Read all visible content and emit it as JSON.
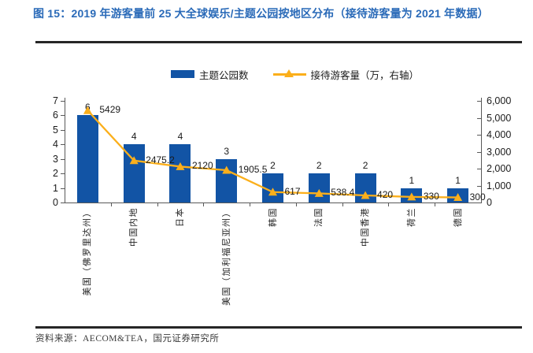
{
  "figure": {
    "title": "图 15：2019 年游客量前 25 大全球娱乐/主题公园按地区分布（接待游客量为 2021 年数据）",
    "source": "资料来源：AECOM&TEA，国元证券研究所"
  },
  "legend": {
    "bar_label": "主题公园数",
    "line_label": "接待游客量（万，右轴）"
  },
  "colors": {
    "bar": "#1254A5",
    "line": "#FBAF1B",
    "title": "#2A6AB8",
    "axis": "#595959",
    "text": "#1A1A1A",
    "rule": "#262626"
  },
  "chart_data": {
    "type": "bar+line combo",
    "title": "图 15：2019 年游客量前 25 大全球娱乐/主题公园按地区分布（接待游客量为 2021 年数据）",
    "categories": [
      "美国（佛罗里达州）",
      "中国内地",
      "日本",
      "美国（加利福尼亚州）",
      "韩国",
      "法国",
      "中国香港",
      "荷兰",
      "德国"
    ],
    "series": [
      {
        "name": "主题公园数",
        "type": "bar",
        "axis": "left",
        "values": [
          6,
          4,
          4,
          3,
          2,
          2,
          2,
          1,
          1
        ]
      },
      {
        "name": "接待游客量（万，右轴）",
        "type": "line",
        "axis": "right",
        "values": [
          5429,
          2475.2,
          2120,
          1905.5,
          617,
          538.4,
          420,
          330,
          300
        ]
      }
    ],
    "bar_labels": [
      "6",
      "4",
      "4",
      "3",
      "2",
      "2",
      "2",
      "1",
      "1"
    ],
    "point_labels": [
      "5429",
      "2475.2",
      "2120",
      "1905.5",
      "617",
      "538.4",
      "420",
      "330",
      "300"
    ],
    "left_axis": {
      "min": 0,
      "max": 7,
      "tick_labels": [
        "0",
        "1",
        "2",
        "3",
        "4",
        "5",
        "6",
        "7"
      ]
    },
    "right_axis": {
      "min": 0,
      "max": 6000,
      "tick_labels": [
        "0",
        "1,000",
        "2,000",
        "3,000",
        "4,000",
        "5,000",
        "6,000"
      ]
    },
    "grid": false,
    "legend_position": "top"
  }
}
